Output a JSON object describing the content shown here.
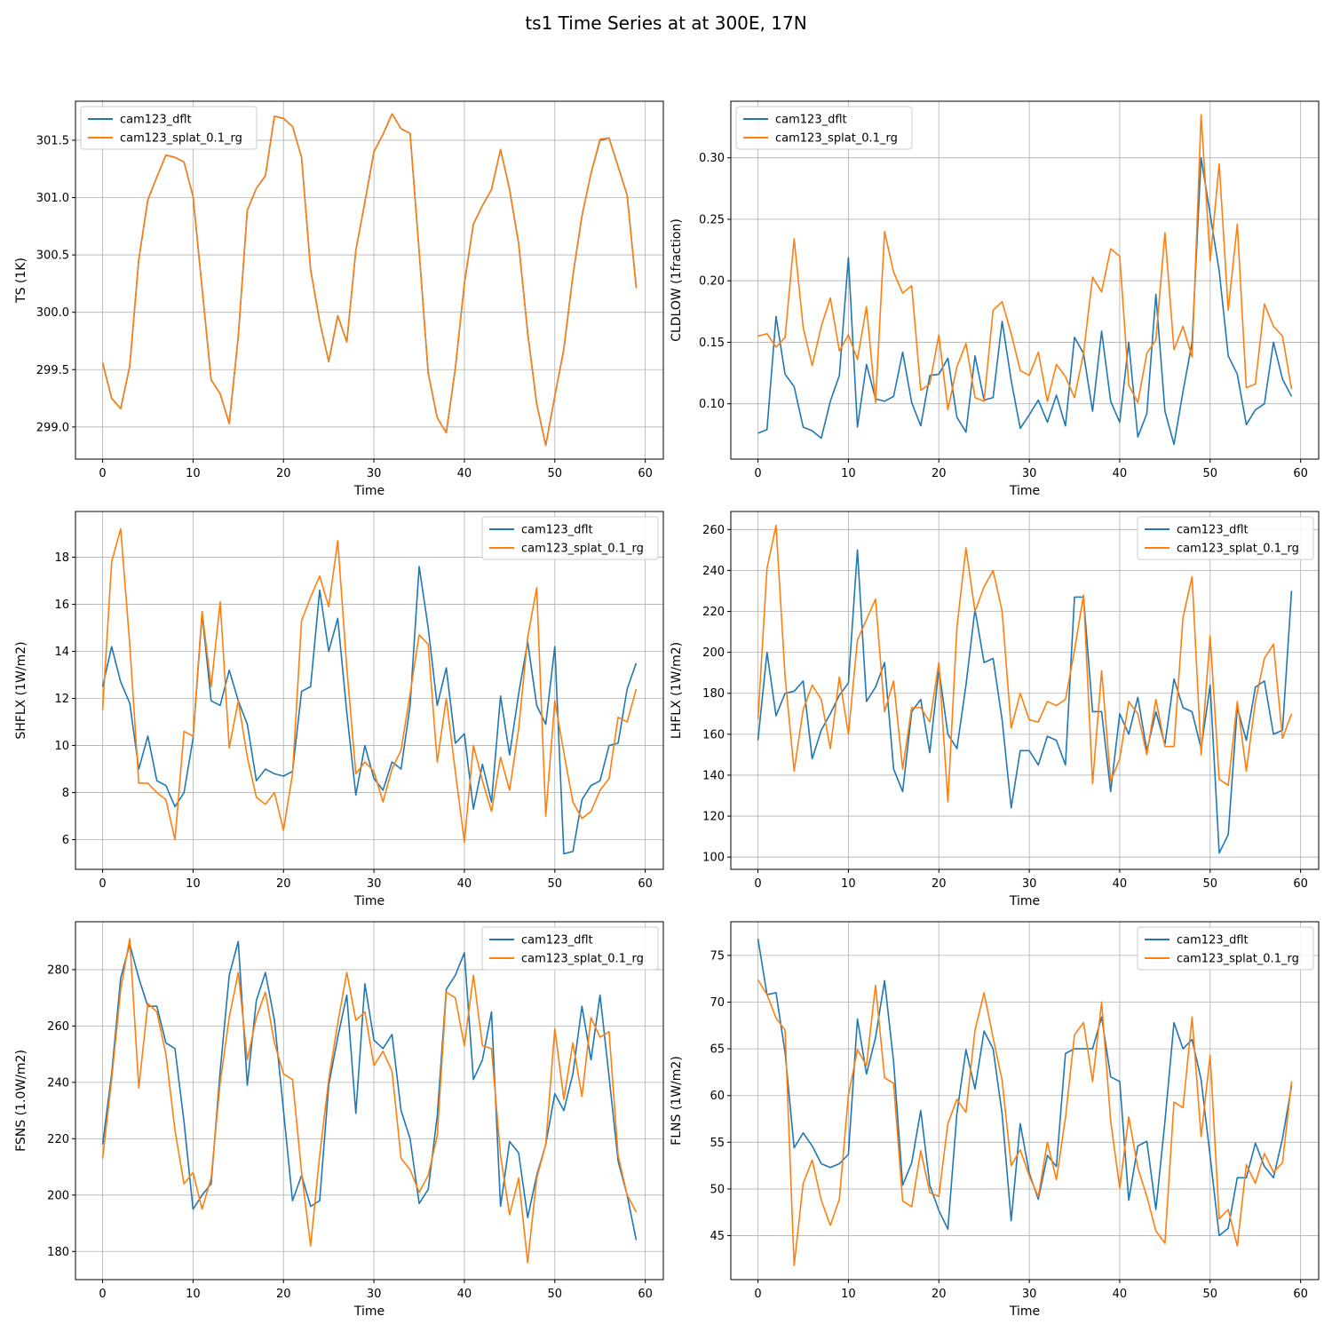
{
  "figure_title": "ts1 Time Series at at 300E, 17N",
  "colors": {
    "series0": "#1f77b4",
    "series1": "#ff7f0e",
    "grid": "#b0b0b0",
    "axis": "#000000"
  },
  "chart_data": [
    {
      "type": "line",
      "title": "",
      "xlabel": "Time",
      "ylabel": "TS (1K)",
      "legend_position": "top-left",
      "xlim": [
        -3,
        62
      ],
      "ylim": [
        298.72,
        301.84
      ],
      "xticks": [
        0,
        10,
        20,
        30,
        40,
        50,
        60
      ],
      "yticks": [
        299.0,
        299.5,
        300.0,
        300.5,
        301.0,
        301.5
      ],
      "ytick_labels": [
        "299.0",
        "299.5",
        "300.0",
        "300.5",
        "301.0",
        "301.5"
      ],
      "x_start": 0,
      "series": [
        {
          "name": "cam123_dflt",
          "values": [
            299.56,
            299.25,
            299.16,
            299.53,
            300.46,
            300.98,
            301.18,
            301.37,
            301.35,
            301.31,
            301.01,
            300.21,
            299.41,
            299.29,
            299.03,
            299.79,
            300.89,
            301.08,
            301.19,
            301.71,
            301.69,
            301.62,
            301.35,
            300.37,
            299.92,
            299.57,
            299.97,
            299.74,
            300.54,
            300.96,
            301.4,
            301.55,
            301.73,
            301.6,
            301.56,
            300.53,
            299.47,
            299.08,
            298.95,
            299.51,
            300.25,
            300.77,
            300.93,
            301.07,
            301.42,
            301.07,
            300.6,
            299.82,
            299.2,
            298.84,
            299.27,
            299.68,
            300.32,
            300.84,
            301.21,
            301.5,
            301.52,
            301.27,
            301.02,
            300.22
          ]
        },
        {
          "name": "cam123_splat_0.1_rg",
          "values": [
            299.56,
            299.25,
            299.16,
            299.53,
            300.46,
            300.98,
            301.18,
            301.37,
            301.35,
            301.31,
            301.01,
            300.21,
            299.41,
            299.29,
            299.03,
            299.79,
            300.89,
            301.08,
            301.19,
            301.71,
            301.69,
            301.62,
            301.35,
            300.37,
            299.92,
            299.57,
            299.97,
            299.74,
            300.54,
            300.96,
            301.4,
            301.55,
            301.73,
            301.6,
            301.56,
            300.53,
            299.47,
            299.08,
            298.95,
            299.51,
            300.25,
            300.77,
            300.93,
            301.07,
            301.42,
            301.07,
            300.6,
            299.82,
            299.2,
            298.84,
            299.27,
            299.68,
            300.32,
            300.84,
            301.21,
            301.51,
            301.52,
            301.27,
            301.02,
            300.21
          ]
        }
      ]
    },
    {
      "type": "line",
      "title": "",
      "xlabel": "Time",
      "ylabel": "CLDLOW (1fraction)",
      "legend_position": "top-left",
      "xlim": [
        -3,
        62
      ],
      "ylim": [
        0.055,
        0.346
      ],
      "xticks": [
        0,
        10,
        20,
        30,
        40,
        50,
        60
      ],
      "yticks": [
        0.1,
        0.15,
        0.2,
        0.25,
        0.3
      ],
      "ytick_labels": [
        "0.10",
        "0.15",
        "0.20",
        "0.25",
        "0.30"
      ],
      "x_start": 0,
      "series": [
        {
          "name": "cam123_dflt",
          "values": [
            0.076,
            0.079,
            0.171,
            0.124,
            0.114,
            0.081,
            0.078,
            0.072,
            0.102,
            0.123,
            0.219,
            0.081,
            0.132,
            0.104,
            0.102,
            0.106,
            0.142,
            0.101,
            0.082,
            0.123,
            0.124,
            0.137,
            0.089,
            0.077,
            0.139,
            0.103,
            0.105,
            0.167,
            0.119,
            0.08,
            0.091,
            0.103,
            0.085,
            0.107,
            0.082,
            0.154,
            0.141,
            0.094,
            0.159,
            0.102,
            0.085,
            0.15,
            0.073,
            0.092,
            0.189,
            0.094,
            0.067,
            0.11,
            0.15,
            0.3,
            0.254,
            0.208,
            0.139,
            0.124,
            0.083,
            0.095,
            0.1,
            0.15,
            0.12,
            0.106
          ]
        },
        {
          "name": "cam123_splat_0.1_rg",
          "values": [
            0.155,
            0.157,
            0.146,
            0.154,
            0.234,
            0.162,
            0.131,
            0.163,
            0.186,
            0.143,
            0.156,
            0.136,
            0.179,
            0.101,
            0.24,
            0.207,
            0.19,
            0.196,
            0.111,
            0.116,
            0.156,
            0.095,
            0.13,
            0.149,
            0.105,
            0.102,
            0.176,
            0.183,
            0.157,
            0.127,
            0.123,
            0.142,
            0.102,
            0.132,
            0.122,
            0.105,
            0.141,
            0.203,
            0.191,
            0.226,
            0.22,
            0.115,
            0.101,
            0.141,
            0.152,
            0.239,
            0.144,
            0.163,
            0.138,
            0.335,
            0.216,
            0.295,
            0.176,
            0.246,
            0.113,
            0.116,
            0.181,
            0.163,
            0.155,
            0.112
          ]
        }
      ]
    },
    {
      "type": "line",
      "title": "",
      "xlabel": "Time",
      "ylabel": "SHFLX (1W/m2)",
      "legend_position": "top-right",
      "xlim": [
        -3,
        62
      ],
      "ylim": [
        4.74,
        19.94
      ],
      "xticks": [
        0,
        10,
        20,
        30,
        40,
        50,
        60
      ],
      "yticks": [
        6,
        8,
        10,
        12,
        14,
        16,
        18
      ],
      "ytick_labels": [
        "6",
        "8",
        "10",
        "12",
        "14",
        "16",
        "18"
      ],
      "x_start": 0,
      "series": [
        {
          "name": "cam123_dflt",
          "values": [
            12.5,
            14.2,
            12.7,
            11.8,
            9.0,
            10.4,
            8.5,
            8.3,
            7.4,
            8.0,
            10.3,
            15.6,
            11.9,
            11.7,
            13.2,
            11.9,
            10.9,
            8.5,
            9.0,
            8.8,
            8.7,
            8.9,
            12.3,
            12.5,
            16.6,
            14.0,
            15.4,
            11.4,
            7.9,
            10.0,
            8.6,
            8.1,
            9.3,
            9.0,
            11.7,
            17.6,
            15.0,
            11.7,
            13.3,
            10.1,
            10.5,
            7.3,
            9.2,
            7.6,
            12.1,
            9.6,
            12.2,
            14.4,
            11.7,
            10.9,
            14.2,
            5.4,
            5.5,
            7.7,
            8.3,
            8.5,
            10.0,
            10.1,
            12.4,
            13.5
          ]
        },
        {
          "name": "cam123_splat_0.1_rg",
          "values": [
            11.5,
            17.8,
            19.2,
            14.3,
            8.4,
            8.4,
            8.0,
            7.7,
            6.0,
            10.6,
            10.4,
            15.7,
            12.5,
            16.1,
            9.9,
            11.9,
            9.5,
            7.8,
            7.5,
            8.0,
            6.4,
            8.8,
            15.3,
            16.3,
            17.2,
            15.9,
            18.7,
            13.3,
            8.8,
            9.3,
            8.9,
            7.6,
            9.0,
            9.8,
            12.2,
            14.7,
            14.3,
            9.3,
            12.0,
            8.9,
            5.9,
            10.0,
            8.5,
            7.2,
            9.5,
            8.1,
            10.7,
            14.6,
            16.7,
            7.0,
            11.9,
            9.7,
            7.6,
            6.9,
            7.2,
            8.1,
            8.6,
            11.2,
            11.0,
            12.4
          ]
        }
      ]
    },
    {
      "type": "line",
      "title": "",
      "xlabel": "Time",
      "ylabel": "LHFLX (1W/m2)",
      "legend_position": "top-right",
      "xlim": [
        -3,
        62
      ],
      "ylim": [
        94.0,
        268.8
      ],
      "xticks": [
        0,
        10,
        20,
        30,
        40,
        50,
        60
      ],
      "yticks": [
        100,
        120,
        140,
        160,
        180,
        200,
        220,
        240,
        260
      ],
      "ytick_labels": [
        "100",
        "120",
        "140",
        "160",
        "180",
        "200",
        "220",
        "240",
        "260"
      ],
      "x_start": 0,
      "series": [
        {
          "name": "cam123_dflt",
          "values": [
            157,
            200,
            169,
            180,
            181,
            186,
            148,
            162,
            170,
            179,
            185,
            250,
            176,
            183,
            195,
            143,
            132,
            171,
            177,
            151,
            192,
            160,
            153,
            184,
            221,
            195,
            197,
            167,
            124,
            152,
            152,
            145,
            159,
            157,
            145,
            227,
            227,
            171,
            171,
            132,
            170,
            160,
            178,
            152,
            171,
            155,
            187,
            173,
            171,
            153,
            184,
            102,
            111,
            173,
            157,
            183,
            186,
            160,
            162,
            230
          ]
        },
        {
          "name": "cam123_splat_0.1_rg",
          "values": [
            167,
            241,
            262,
            188,
            142,
            172,
            184,
            177,
            153,
            188,
            160,
            206,
            216,
            226,
            171,
            186,
            143,
            173,
            173,
            166,
            195,
            127,
            212,
            251,
            220,
            232,
            240,
            220,
            163,
            180,
            167,
            166,
            176,
            174,
            177,
            201,
            228,
            136,
            191,
            137,
            148,
            176,
            170,
            150,
            177,
            154,
            154,
            217,
            237,
            150,
            208,
            138,
            135,
            176,
            142,
            176,
            197,
            204,
            158,
            170
          ]
        }
      ]
    },
    {
      "type": "line",
      "title": "",
      "xlabel": "Time",
      "ylabel": "FSNS (1.0W/m2)",
      "legend_position": "top-right",
      "xlim": [
        -3,
        62
      ],
      "ylim": [
        170.0,
        297.0
      ],
      "xticks": [
        0,
        10,
        20,
        30,
        40,
        50,
        60
      ],
      "yticks": [
        180,
        200,
        220,
        240,
        260,
        280
      ],
      "ytick_labels": [
        "180",
        "200",
        "220",
        "240",
        "260",
        "280"
      ],
      "x_start": 0,
      "series": [
        {
          "name": "cam123_dflt",
          "values": [
            218,
            243,
            277,
            289,
            277,
            267,
            267,
            254,
            252,
            226,
            195,
            200,
            204,
            244,
            278,
            290,
            239,
            269,
            279,
            262,
            230,
            198,
            207,
            196,
            198,
            239,
            256,
            271,
            229,
            275,
            255,
            252,
            257,
            230,
            220,
            197,
            202,
            228,
            273,
            278,
            286,
            241,
            248,
            265,
            196,
            219,
            215,
            192,
            207,
            218,
            236,
            230,
            243,
            267,
            248,
            271,
            242,
            212,
            200,
            184
          ]
        },
        {
          "name": "cam123_splat_0.1_rg",
          "values": [
            213,
            241,
            273,
            291,
            238,
            268,
            265,
            250,
            223,
            204,
            208,
            195,
            206,
            240,
            263,
            279,
            248,
            263,
            272,
            254,
            243,
            241,
            208,
            182,
            214,
            241,
            261,
            279,
            262,
            265,
            246,
            251,
            244,
            213,
            209,
            201,
            207,
            221,
            272,
            270,
            253,
            278,
            253,
            252,
            214,
            193,
            206,
            176,
            206,
            218,
            259,
            234,
            254,
            235,
            263,
            256,
            258,
            214,
            200,
            194
          ]
        }
      ]
    },
    {
      "type": "line",
      "title": "",
      "xlabel": "Time",
      "ylabel": "FLNS (1W/m2)",
      "legend_position": "top-right",
      "xlim": [
        -3,
        62
      ],
      "ylim": [
        40.3,
        78.6
      ],
      "xticks": [
        0,
        10,
        20,
        30,
        40,
        50,
        60
      ],
      "yticks": [
        45,
        50,
        55,
        60,
        65,
        70,
        75
      ],
      "ytick_labels": [
        "45",
        "50",
        "55",
        "60",
        "65",
        "70",
        "75"
      ],
      "x_start": 0,
      "series": [
        {
          "name": "cam123_dflt",
          "values": [
            76.8,
            70.8,
            71.0,
            64.6,
            54.4,
            56.0,
            54.6,
            52.7,
            52.3,
            52.7,
            53.7,
            68.2,
            62.3,
            66.2,
            72.3,
            63.6,
            50.4,
            52.8,
            58.4,
            50.4,
            47.7,
            45.7,
            58.1,
            64.9,
            60.7,
            66.9,
            65.0,
            58.0,
            46.6,
            57.0,
            51.7,
            48.9,
            53.6,
            52.4,
            64.5,
            65.0,
            65.0,
            65.0,
            68.4,
            62.0,
            61.5,
            48.8,
            54.6,
            55.1,
            47.8,
            57.2,
            67.8,
            65.0,
            66.0,
            61.7,
            53.5,
            45.0,
            45.8,
            51.2,
            51.2,
            54.9,
            52.4,
            51.2,
            55.4,
            61.0
          ]
        },
        {
          "name": "cam123_splat_0.1_rg",
          "values": [
            72.4,
            70.8,
            68.3,
            67.0,
            41.8,
            50.6,
            53.1,
            48.8,
            46.1,
            48.9,
            60.0,
            64.9,
            63.2,
            71.8,
            61.9,
            61.3,
            48.7,
            48.1,
            54.1,
            49.6,
            49.2,
            57.0,
            59.6,
            58.2,
            67.0,
            71.0,
            66.2,
            61.6,
            52.5,
            54.2,
            51.4,
            49.2,
            55.0,
            51.0,
            57.6,
            66.5,
            67.8,
            61.5,
            70.0,
            57.3,
            50.1,
            57.7,
            52.3,
            49.2,
            45.5,
            44.2,
            59.3,
            58.7,
            68.4,
            55.6,
            64.3,
            46.8,
            47.8,
            43.9,
            52.6,
            50.6,
            53.8,
            51.8,
            52.8,
            61.5
          ]
        }
      ]
    }
  ]
}
